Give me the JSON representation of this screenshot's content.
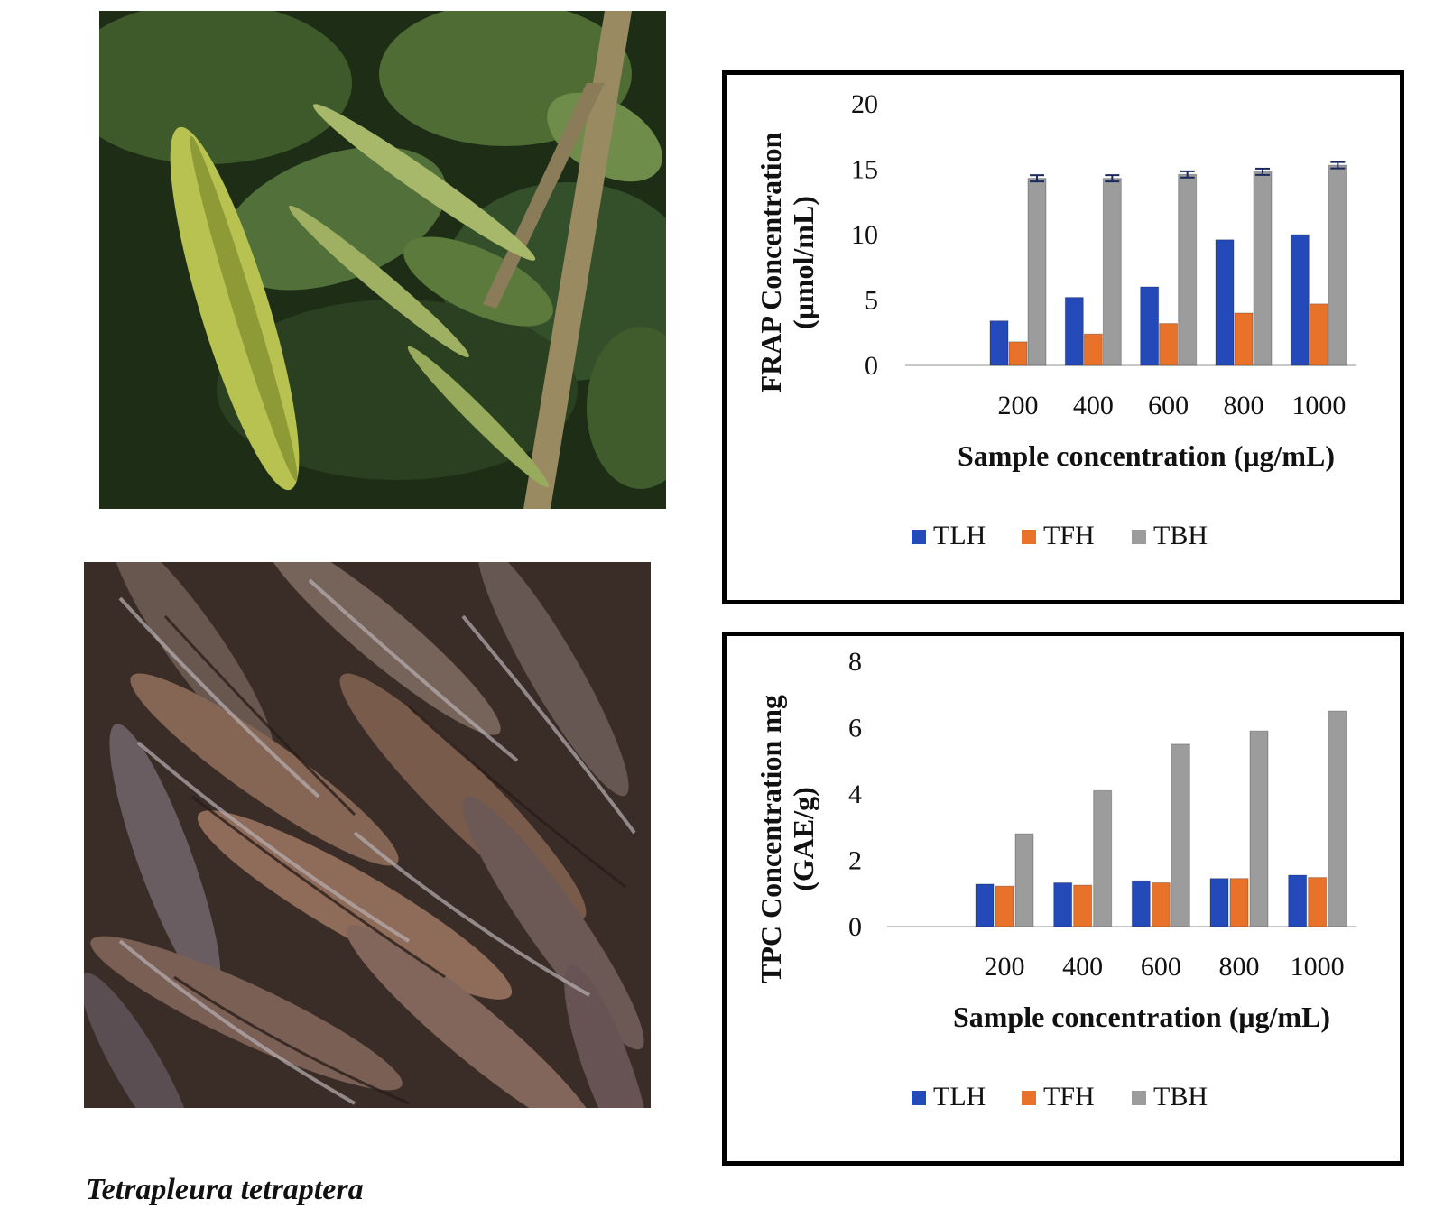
{
  "caption": "Tetrapleura tetraptera",
  "photos": [
    {
      "subject": "green-pod-on-tree"
    },
    {
      "subject": "dried-brown-pods"
    }
  ],
  "colors": {
    "TLH": "#2449b8",
    "TFH": "#e8722a",
    "TBH": "#9c9c9c"
  },
  "chart_data": [
    {
      "type": "bar",
      "categories": [
        "",
        "200",
        "400",
        "600",
        "800",
        "1000"
      ],
      "ylabel_line1": "FRAP Concentration",
      "ylabel_line2": "(μmol/mL)",
      "xlabel": "Sample concentration (μg/mL)",
      "ylim": [
        0,
        20
      ],
      "yticks": [
        0,
        5,
        10,
        15,
        20
      ],
      "error_bars": "TBH",
      "legend_position": "bottom",
      "grid": false,
      "series": [
        {
          "name": "TLH",
          "values": [
            0,
            3.4,
            5.2,
            6.0,
            9.6,
            10.0
          ]
        },
        {
          "name": "TFH",
          "values": [
            0,
            1.8,
            2.4,
            3.2,
            4.0,
            4.7
          ]
        },
        {
          "name": "TBH",
          "values": [
            0,
            14.3,
            14.3,
            14.6,
            14.8,
            15.3
          ]
        }
      ]
    },
    {
      "type": "bar",
      "categories": [
        "",
        "200",
        "400",
        "600",
        "800",
        "1000"
      ],
      "ylabel_line1": "TPC Concentration mg",
      "ylabel_line2": "(GAE/g)",
      "xlabel": "Sample concentration (μg/mL)",
      "ylim": [
        0,
        8
      ],
      "yticks": [
        0,
        2,
        4,
        6,
        8
      ],
      "legend_position": "bottom",
      "grid": false,
      "series": [
        {
          "name": "TLH",
          "values": [
            0,
            1.28,
            1.32,
            1.38,
            1.45,
            1.55
          ]
        },
        {
          "name": "TFH",
          "values": [
            0,
            1.22,
            1.25,
            1.32,
            1.45,
            1.48
          ]
        },
        {
          "name": "TBH",
          "values": [
            0,
            2.8,
            4.1,
            5.5,
            5.9,
            6.5
          ]
        }
      ]
    }
  ]
}
